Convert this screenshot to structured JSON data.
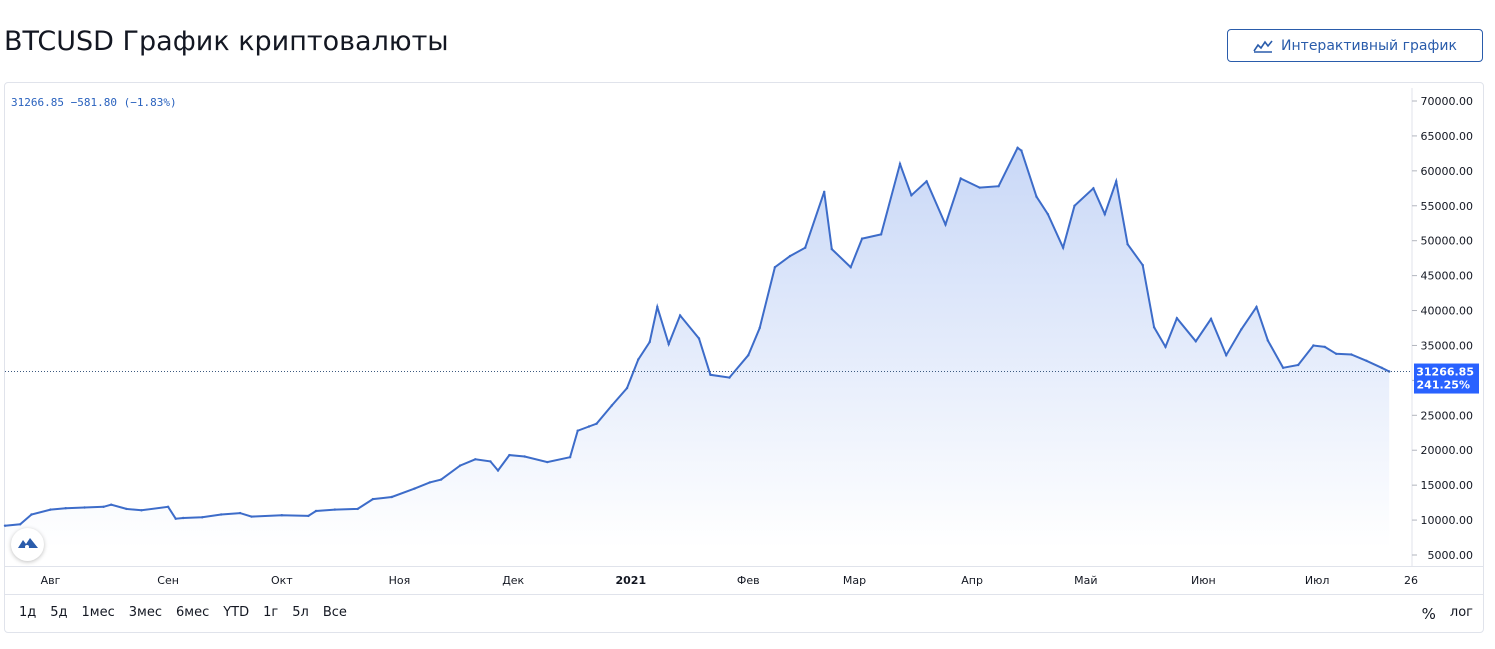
{
  "page": {
    "title": "BTCUSD График криптовалюты",
    "interactive_button_label": "Интерактивный график"
  },
  "legend": {
    "price": "31266.85",
    "change": "−581.80",
    "change_pct": "(−1.83%)"
  },
  "last_price_label": {
    "price": "31266.85",
    "pct": "241.25%"
  },
  "range_buttons": [
    "1д",
    "5д",
    "1мес",
    "3мес",
    "6мес",
    "YTD",
    "1г",
    "5л",
    "Все"
  ],
  "right_controls": {
    "percent": "%",
    "log": "лог"
  },
  "colors": {
    "line": "#3d6cc9",
    "area_top": "#c9d8f7",
    "area_bottom": "#ffffff",
    "accent": "#2a5cab",
    "price_tag": "#2962ff"
  },
  "chart_data": {
    "type": "area",
    "title": "",
    "xlabel": "",
    "ylabel": "",
    "ylim": [
      5000,
      70000
    ],
    "yticks": [
      "70000.00",
      "65000.00",
      "60000.00",
      "55000.00",
      "50000.00",
      "45000.00",
      "40000.00",
      "35000.00",
      "30000.00",
      "25000.00",
      "20000.00",
      "15000.00",
      "10000.00",
      "5000.00"
    ],
    "xticks": [
      "Авг",
      "Сен",
      "Окт",
      "Ноя",
      "Дек",
      "2021",
      "Фев",
      "Мар",
      "Апр",
      "Май",
      "Июн",
      "Июл",
      "26"
    ],
    "grid": false,
    "series": [
      {
        "x": [
          "2020-07-20",
          "2020-07-24",
          "2020-07-27",
          "2020-08-01",
          "2020-08-05",
          "2020-08-10",
          "2020-08-15",
          "2020-08-17",
          "2020-08-21",
          "2020-08-25",
          "2020-09-01",
          "2020-09-03",
          "2020-09-05",
          "2020-09-10",
          "2020-09-15",
          "2020-09-20",
          "2020-09-23",
          "2020-10-01",
          "2020-10-08",
          "2020-10-10",
          "2020-10-15",
          "2020-10-21",
          "2020-10-25",
          "2020-10-30",
          "2020-11-05",
          "2020-11-09",
          "2020-11-12",
          "2020-11-17",
          "2020-11-21",
          "2020-11-25",
          "2020-11-27",
          "2020-11-30",
          "2020-12-04",
          "2020-12-10",
          "2020-12-16",
          "2020-12-18",
          "2020-12-21",
          "2020-12-23",
          "2020-12-27",
          "2020-12-31",
          "2021-01-03",
          "2021-01-06",
          "2021-01-08",
          "2021-01-11",
          "2021-01-14",
          "2021-01-19",
          "2021-01-22",
          "2021-01-27",
          "2021-02-01",
          "2021-02-04",
          "2021-02-08",
          "2021-02-12",
          "2021-02-16",
          "2021-02-21",
          "2021-02-23",
          "2021-02-28",
          "2021-03-03",
          "2021-03-08",
          "2021-03-13",
          "2021-03-16",
          "2021-03-20",
          "2021-03-25",
          "2021-03-29",
          "2021-04-03",
          "2021-04-08",
          "2021-04-13",
          "2021-04-14",
          "2021-04-18",
          "2021-04-21",
          "2021-04-25",
          "2021-04-28",
          "2021-05-03",
          "2021-05-06",
          "2021-05-09",
          "2021-05-12",
          "2021-05-16",
          "2021-05-19",
          "2021-05-22",
          "2021-05-25",
          "2021-05-30",
          "2021-06-03",
          "2021-06-07",
          "2021-06-11",
          "2021-06-15",
          "2021-06-18",
          "2021-06-22",
          "2021-06-26",
          "2021-06-30",
          "2021-07-03",
          "2021-07-06",
          "2021-07-10",
          "2021-07-14",
          "2021-07-18",
          "2021-07-20"
        ],
        "values": [
          9200,
          9400,
          10800,
          11500,
          11700,
          11800,
          11900,
          12200,
          11600,
          11400,
          11900,
          10200,
          10300,
          10400,
          10800,
          11000,
          10500,
          10700,
          10600,
          11300,
          11500,
          11600,
          13000,
          13300,
          14500,
          15400,
          15800,
          17800,
          18700,
          18400,
          17100,
          19300,
          19100,
          18300,
          19000,
          22800,
          23400,
          23800,
          26400,
          28900,
          33000,
          35500,
          40500,
          35200,
          39300,
          36000,
          30800,
          30400,
          33600,
          37500,
          46200,
          47800,
          49000,
          57000,
          48800,
          46200,
          50300,
          50900,
          61000,
          56500,
          58500,
          52300,
          58900,
          57600,
          57800,
          63300,
          62900,
          56300,
          53800,
          49000,
          55000,
          57500,
          53800,
          58500,
          49500,
          46500,
          37600,
          34800,
          38900,
          35600,
          38800,
          33600,
          37300,
          40500,
          35700,
          31800,
          32200,
          35000,
          34800,
          33800,
          33700,
          32800,
          31800,
          31267
        ]
      }
    ]
  }
}
